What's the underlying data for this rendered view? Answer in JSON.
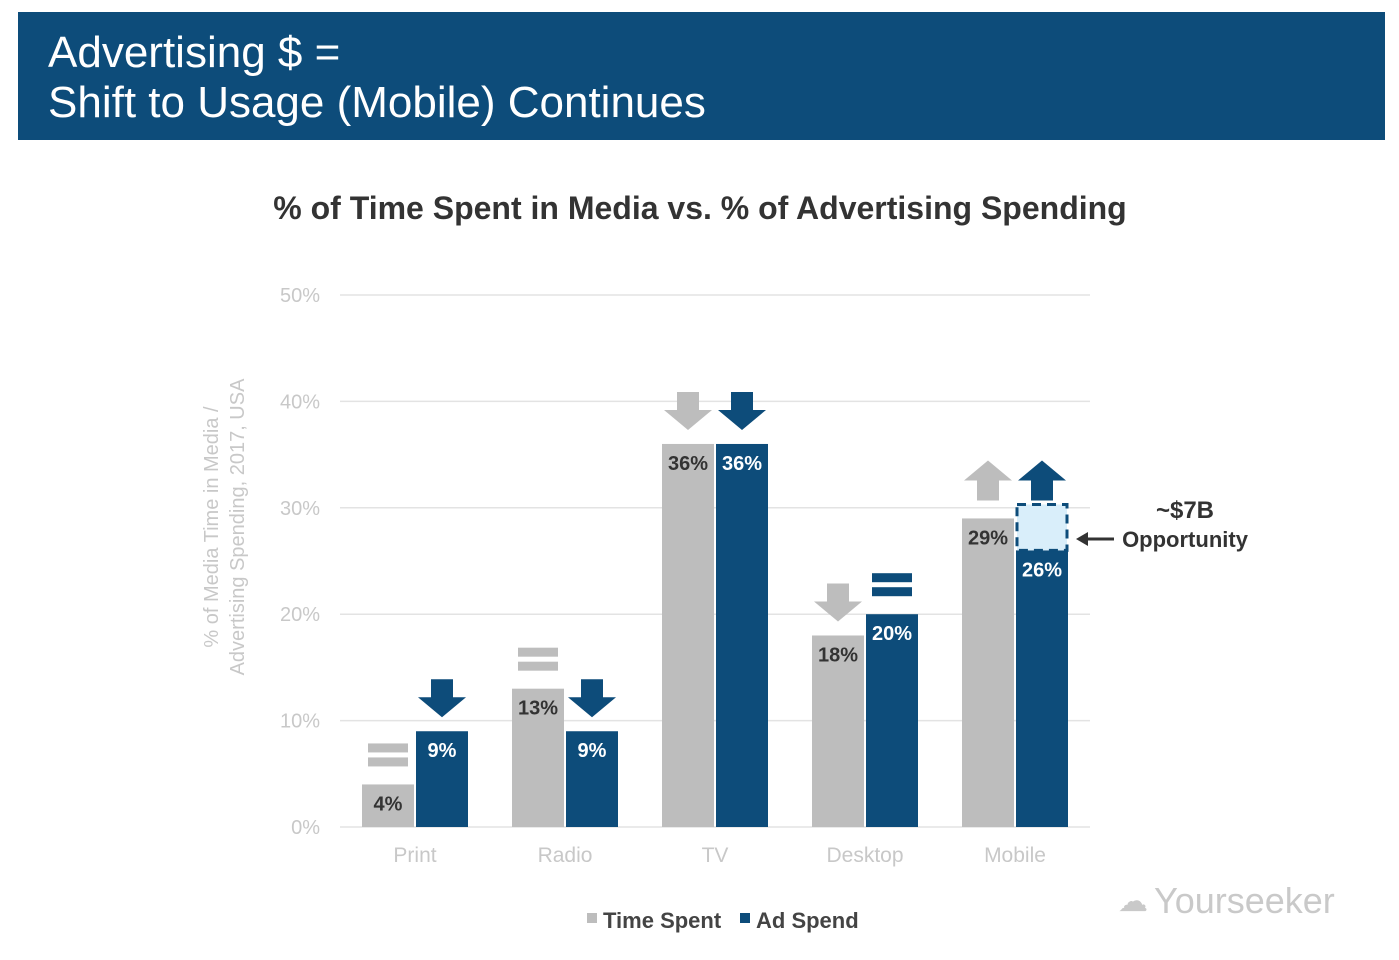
{
  "header": {
    "line1": "Advertising $ =",
    "line2": "Shift to Usage (Mobile) Continues"
  },
  "watermark": "Yourseeker",
  "colors": {
    "header": "#0d4c7a",
    "time_spent": "#bdbdbd",
    "ad_spend": "#0d4c7a",
    "opportunity_fill": "#d9eefa"
  },
  "chart_data": {
    "type": "bar",
    "title": "% of Time Spent in Media vs. % of Advertising Spending",
    "ylabel_line1": "% of Media Time in Media /",
    "ylabel_line2": "Advertising Spending, 2017, USA",
    "ylim": [
      0,
      50
    ],
    "yticks": [
      "0%",
      "10%",
      "20%",
      "30%",
      "40%",
      "50%"
    ],
    "grid": true,
    "legend": "bottom",
    "categories": [
      "Print",
      "Radio",
      "TV",
      "Desktop",
      "Mobile"
    ],
    "series": [
      {
        "name": "Time Spent",
        "values": [
          4,
          13,
          36,
          18,
          29
        ],
        "labels": [
          "4%",
          "13%",
          "36%",
          "18%",
          "29%"
        ],
        "trend": [
          "equal",
          "equal",
          "down",
          "down",
          "up"
        ]
      },
      {
        "name": "Ad Spend",
        "values": [
          9,
          9,
          36,
          20,
          26
        ],
        "labels": [
          "9%",
          "9%",
          "36%",
          "20%",
          "26%"
        ],
        "trend": [
          "down",
          "down",
          "down",
          "equal",
          "up"
        ]
      }
    ],
    "annotation": {
      "line1": "~$7B",
      "line2": "Opportunity",
      "category": "Mobile",
      "from": 26,
      "to": 29
    }
  }
}
